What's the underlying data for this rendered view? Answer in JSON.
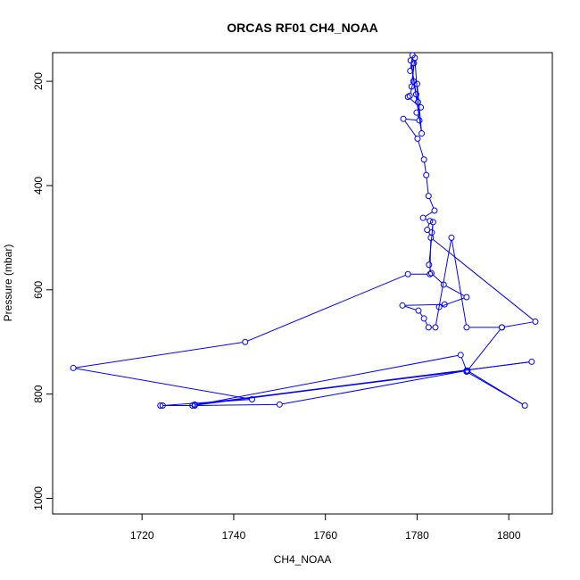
{
  "chart_data": {
    "type": "line",
    "title": "ORCAS RF01 CH4_NOAA",
    "xlabel": "CH4_NOAA",
    "ylabel": "Pressure (mbar)",
    "xlim": [
      1700.5,
      1809.5
    ],
    "ylim": [
      1030,
      145
    ],
    "y_reversed": true,
    "x_ticks": [
      1720,
      1740,
      1760,
      1780,
      1800
    ],
    "y_ticks": [
      200,
      400,
      600,
      800,
      1000
    ],
    "grid": false,
    "legend": "none",
    "series": [
      {
        "color": "#0000ff",
        "marker": "open-circle",
        "points": [
          [
            1779.0,
            150
          ],
          [
            1778.5,
            180
          ],
          [
            1779.3,
            165
          ],
          [
            1778.8,
            210
          ],
          [
            1779.5,
            155
          ],
          [
            1780.2,
            240
          ],
          [
            1779.8,
            225
          ],
          [
            1778.6,
            160
          ],
          [
            1781.0,
            300
          ],
          [
            1780.0,
            205
          ],
          [
            1779.2,
            200
          ],
          [
            1778.4,
            228
          ],
          [
            1778.0,
            230
          ],
          [
            1780.8,
            250
          ],
          [
            1779.9,
            260
          ],
          [
            1780.5,
            275
          ],
          [
            1777.0,
            272
          ],
          [
            1780.1,
            310
          ],
          [
            1781.5,
            350
          ],
          [
            1782.0,
            380
          ],
          [
            1782.5,
            420
          ],
          [
            1783.8,
            448
          ],
          [
            1781.3,
            462
          ],
          [
            1782.8,
            468
          ],
          [
            1782.2,
            485
          ],
          [
            1783.2,
            490
          ],
          [
            1783.5,
            470
          ],
          [
            1782.6,
            552
          ],
          [
            1783.1,
            568
          ],
          [
            1785.8,
            590
          ],
          [
            1790.8,
            614
          ],
          [
            1784.8,
            633
          ],
          [
            1786.0,
            628
          ],
          [
            1776.8,
            630
          ],
          [
            1780.3,
            640
          ],
          [
            1781.5,
            655
          ],
          [
            1782.5,
            672
          ],
          [
            1784.0,
            672
          ],
          [
            1787.5,
            500
          ],
          [
            1790.8,
            672
          ],
          [
            1798.5,
            672
          ],
          [
            1805.8,
            661
          ],
          [
            1783.0,
            500
          ],
          [
            1782.8,
            570
          ],
          [
            1778.0,
            570
          ],
          [
            1742.5,
            700
          ],
          [
            1705.0,
            750
          ],
          [
            1744.0,
            810
          ],
          [
            1724.5,
            822
          ],
          [
            1724.0,
            822
          ],
          [
            1731.5,
            822
          ],
          [
            1750.0,
            820
          ],
          [
            1790.8,
            755
          ],
          [
            1789.5,
            725
          ],
          [
            1731.0,
            822
          ],
          [
            1805.0,
            738
          ],
          [
            1731.5,
            820
          ],
          [
            1791.0,
            755
          ],
          [
            1803.5,
            822
          ],
          [
            1790.8,
            757
          ],
          [
            1798.5,
            672
          ]
        ]
      }
    ]
  }
}
